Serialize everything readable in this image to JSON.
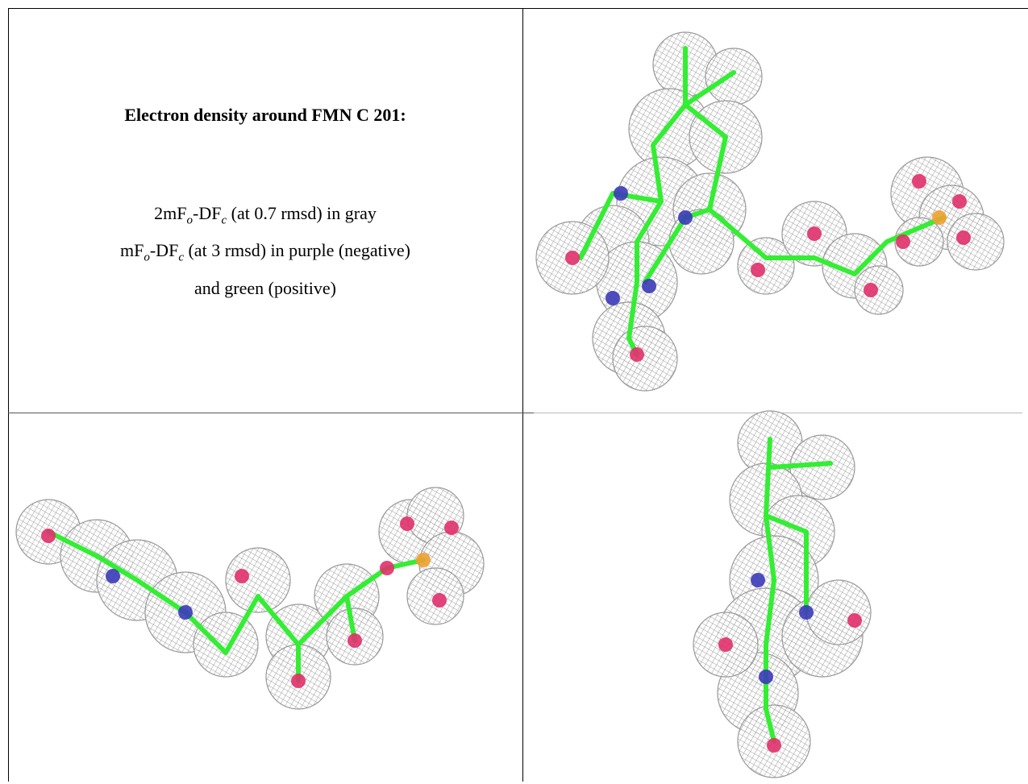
{
  "header": {
    "title": "Electron density around FMN C 201:"
  },
  "legend": {
    "lines": [
      [
        "2mF",
        "o",
        "-DF",
        "c",
        " (at 0.7 rmsd) in gray"
      ],
      [
        "mF",
        "o",
        "-DF",
        "c",
        " (at 3 rmsd) in purple (negative)"
      ],
      [
        "and green (positive)"
      ]
    ]
  }
}
